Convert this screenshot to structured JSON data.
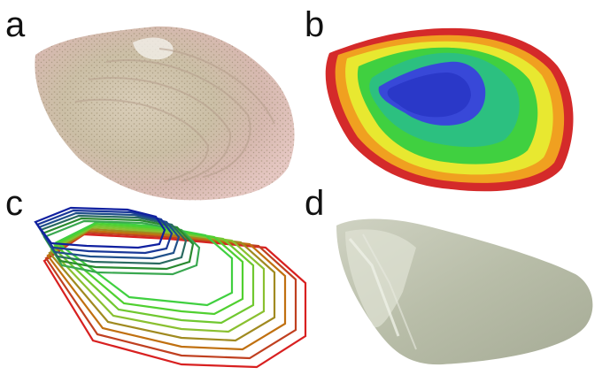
{
  "panels": [
    {
      "id": "a",
      "label": "a",
      "icon": "oyster-shell-photo"
    },
    {
      "id": "b",
      "label": "b",
      "icon": "height-colormap-shell",
      "colors": [
        "#d42a2a",
        "#f0a020",
        "#e8e830",
        "#40d040",
        "#2cc080",
        "#2a38c8"
      ]
    },
    {
      "id": "c",
      "label": "c",
      "icon": "contour-layers",
      "colors": [
        "#1020a0",
        "#2a8a30",
        "#40d040",
        "#8ac030",
        "#c07010",
        "#d82020"
      ]
    },
    {
      "id": "d",
      "label": "d",
      "icon": "grey-shell-render"
    }
  ]
}
